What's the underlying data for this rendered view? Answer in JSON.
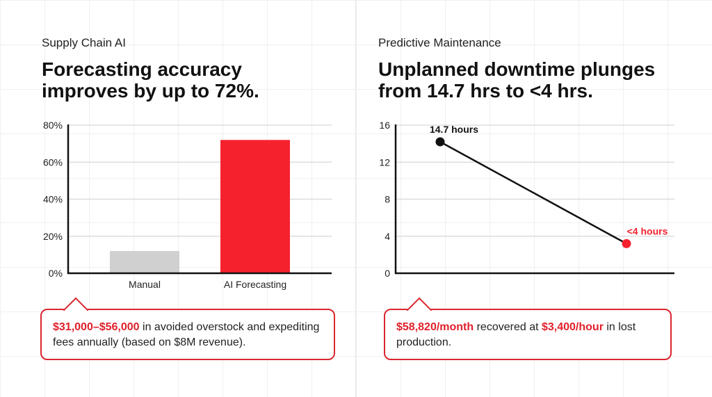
{
  "left_panel": {
    "eyebrow": "Supply Chain AI",
    "headline_line1": "Forecasting accuracy",
    "headline_line2": "improves by up to 72%.",
    "callout": {
      "highlight": "$31,000–$56,000",
      "text": " in avoided overstock and expediting fees annually (based on $8M revenue)."
    }
  },
  "right_panel": {
    "eyebrow": "Predictive Maintenance",
    "headline_line1": "Unplanned downtime plunges",
    "headline_line2": "from 14.7 hrs to <4 hrs.",
    "callout": {
      "highlight1": "$58,820/month",
      "text1": " recovered at ",
      "highlight2": "$3,400/hour",
      "text2": " in lost production."
    }
  },
  "colors": {
    "accent": "#f5222d",
    "neutral_bar": "#d0d0d0",
    "axis": "#111111",
    "grid": "#dddddd"
  },
  "chart_data": [
    {
      "type": "bar",
      "categories": [
        "Manual",
        "AI Forecasting"
      ],
      "values": [
        12,
        72
      ],
      "colors": [
        "#d0d0d0",
        "#f5222d"
      ],
      "ylim": [
        0,
        80
      ],
      "yticks": [
        "0%",
        "20%",
        "40%",
        "60%",
        "80%"
      ],
      "ytick_values": [
        0,
        20,
        40,
        60,
        80
      ],
      "grid": true
    },
    {
      "type": "line",
      "points": [
        {
          "label": "14.7 hours",
          "value": 14.7,
          "color": "#111111"
        },
        {
          "label": "<4 hours",
          "value": 3.2,
          "color": "#f5222d"
        }
      ],
      "ylim": [
        0,
        16
      ],
      "yticks": [
        "0",
        "4",
        "8",
        "12",
        "16"
      ],
      "ytick_values": [
        0,
        4,
        8,
        12,
        16
      ],
      "grid": true
    }
  ]
}
